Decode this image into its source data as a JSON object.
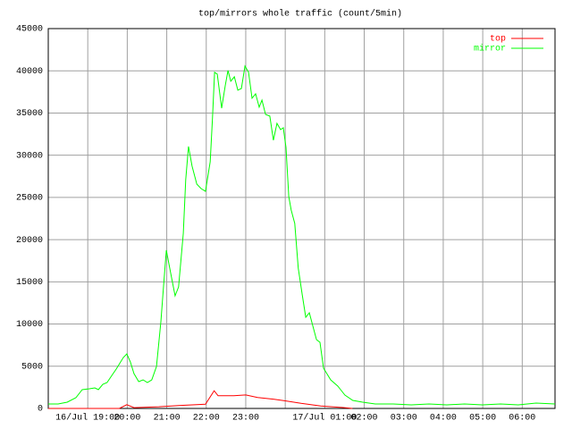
{
  "chart_data": {
    "type": "line",
    "title": "top/mirrors whole traffic (count/5min)",
    "xlim": [
      18,
      30.83
    ],
    "ylim": [
      0,
      45000
    ],
    "yticks": [
      0,
      5000,
      10000,
      15000,
      20000,
      25000,
      30000,
      35000,
      40000,
      45000
    ],
    "xticks": [
      {
        "value": 19,
        "label": "16/Jul 19:00"
      },
      {
        "value": 20,
        "label": "20:00"
      },
      {
        "value": 21,
        "label": "21:00"
      },
      {
        "value": 22,
        "label": "22:00"
      },
      {
        "value": 23,
        "label": "23:00"
      },
      {
        "value": 24,
        "label": null
      },
      {
        "value": 25,
        "label": "17/Jul 01:00"
      },
      {
        "value": 26,
        "label": "02:00"
      },
      {
        "value": 27,
        "label": "03:00"
      },
      {
        "value": 28,
        "label": "04:00"
      },
      {
        "value": 29,
        "label": "05:00"
      },
      {
        "value": 30,
        "label": "06:00"
      }
    ],
    "grid": true,
    "legend": "top-right",
    "series": [
      {
        "name": "top",
        "color": "#ff0000",
        "x": [
          18.0,
          19.8,
          19.99,
          20.17,
          20.8,
          21.3,
          21.98,
          22.2,
          22.3,
          22.7,
          23.0,
          23.3,
          23.7,
          24.0,
          24.4,
          24.9,
          25.5,
          25.7
        ],
        "values": [
          0,
          0,
          450,
          100,
          200,
          350,
          500,
          2100,
          1500,
          1500,
          1600,
          1300,
          1100,
          900,
          600,
          300,
          100,
          0
        ]
      },
      {
        "name": "mirror",
        "color": "#00ff00",
        "x": [
          18.0,
          18.25,
          18.48,
          18.7,
          18.86,
          19.04,
          19.18,
          19.27,
          19.38,
          19.49,
          19.61,
          19.72,
          19.9,
          19.99,
          20.08,
          20.17,
          20.29,
          20.4,
          20.51,
          20.62,
          20.74,
          20.85,
          20.92,
          20.99,
          21.08,
          21.21,
          21.3,
          21.42,
          21.48,
          21.55,
          21.64,
          21.76,
          21.87,
          21.98,
          22.1,
          22.16,
          22.21,
          22.28,
          22.39,
          22.48,
          22.55,
          22.62,
          22.71,
          22.8,
          22.89,
          22.98,
          23.07,
          23.16,
          23.25,
          23.34,
          23.41,
          23.5,
          23.61,
          23.7,
          23.79,
          23.88,
          23.95,
          24.02,
          24.09,
          24.15,
          24.24,
          24.33,
          24.43,
          24.52,
          24.61,
          24.7,
          24.79,
          24.88,
          24.97,
          25.15,
          25.33,
          25.51,
          25.71,
          25.96,
          26.28,
          26.73,
          27.19,
          27.64,
          28.09,
          28.54,
          28.99,
          29.45,
          29.9,
          30.35,
          30.83
        ],
        "values": [
          530,
          530,
          740,
          1270,
          2220,
          2330,
          2440,
          2220,
          2860,
          3070,
          3920,
          4660,
          6040,
          6460,
          5510,
          4130,
          3180,
          3390,
          3070,
          3390,
          4980,
          10270,
          14510,
          18740,
          16520,
          13340,
          14400,
          20750,
          27110,
          31030,
          28700,
          26580,
          26050,
          25730,
          29230,
          34520,
          39820,
          39610,
          35580,
          38230,
          40030,
          38760,
          39290,
          37700,
          37910,
          40560,
          39820,
          36750,
          37280,
          35690,
          36530,
          34840,
          34630,
          31770,
          33780,
          33040,
          33250,
          30920,
          25100,
          23510,
          21920,
          16630,
          13450,
          10800,
          11330,
          9740,
          8150,
          7840,
          4760,
          3390,
          2650,
          1590,
          950,
          740,
          530,
          530,
          420,
          530,
          420,
          530,
          420,
          530,
          420,
          640,
          530
        ]
      }
    ]
  }
}
